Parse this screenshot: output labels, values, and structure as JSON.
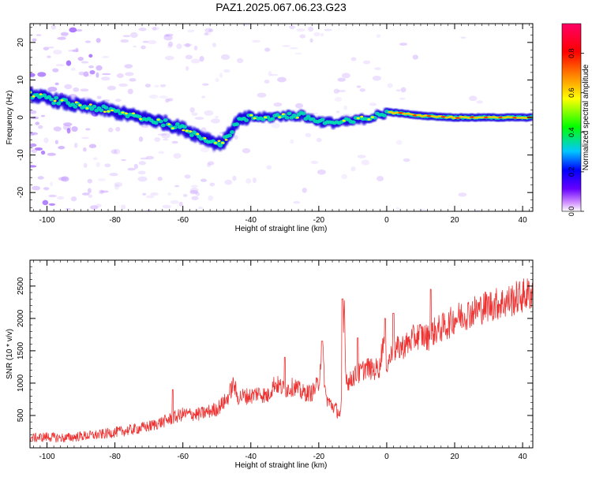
{
  "title": "PAZ1.2025.067.06.23.G23",
  "chart_data": [
    {
      "type": "heatmap",
      "title": "PAZ1.2025.067.06.23.G23",
      "xlabel": "Height of straight line (km)",
      "ylabel": "Frequency (Hz)",
      "xlim": [
        -105,
        43
      ],
      "ylim": [
        -25,
        25
      ],
      "x_ticks": [
        -100,
        -80,
        -60,
        -40,
        -20,
        0,
        20,
        40
      ],
      "y_ticks": [
        -20,
        -10,
        0,
        10,
        20
      ],
      "ridge": {
        "x": [
          -104,
          -100,
          -95,
          -90,
          -85,
          -80,
          -75,
          -70,
          -65,
          -60,
          -55,
          -52,
          -50,
          -48,
          -46,
          -44,
          -40,
          -35,
          -30,
          -25,
          -20,
          -15,
          -10,
          -5,
          -2,
          0,
          5,
          10,
          20,
          30,
          43
        ],
        "y": [
          6,
          5,
          4,
          3,
          2.5,
          1.5,
          0.5,
          -0.5,
          -1.5,
          -3,
          -5,
          -6,
          -7,
          -6.5,
          -4,
          -1,
          0,
          0,
          0.5,
          0.5,
          -1,
          -1.5,
          -1,
          0,
          0.5,
          1.5,
          1,
          0.5,
          0,
          0,
          0
        ]
      },
      "colorbar": {
        "label": "Normalized spectral amplitude",
        "min": 0.0,
        "max": 0.95,
        "ticks": [
          0.0,
          0.2,
          0.4,
          0.6,
          0.8
        ],
        "colors": [
          "#ffffff",
          "#cc88ff",
          "#6600ff",
          "#0000ff",
          "#00c8ff",
          "#00ff00",
          "#ffff00",
          "#ff8800",
          "#ff0000",
          "#ff0066"
        ]
      },
      "colors": {
        "ridge_core": "#ff8800",
        "ridge_mid": "#00e0b0",
        "ridge_outer": "#1a00e0",
        "noise": "#c8a0ff"
      }
    },
    {
      "type": "line",
      "xlabel": "Height of straight line (km)",
      "ylabel": "SNR (10 * v/v)",
      "xlim": [
        -105,
        43
      ],
      "ylim": [
        0,
        2900
      ],
      "x_ticks": [
        -100,
        -80,
        -60,
        -40,
        -20,
        0,
        20,
        40
      ],
      "y_ticks": [
        500,
        1000,
        1500,
        2000,
        2500
      ],
      "series": [
        {
          "color": "#ee3333",
          "x": [
            -105,
            -100,
            -95,
            -90,
            -85,
            -80,
            -75,
            -70,
            -65,
            -60,
            -55,
            -50,
            -47,
            -45,
            -44,
            -42,
            -40,
            -38,
            -35,
            -33,
            -30,
            -27,
            -25,
            -22,
            -20,
            -19,
            -18,
            -17,
            -16,
            -15,
            -13.5,
            -13,
            -12.5,
            -12,
            -11,
            -10,
            -8,
            -6,
            -4,
            -2,
            -1,
            0,
            1,
            2,
            4,
            6,
            8,
            10,
            12,
            14,
            16,
            18,
            20,
            25,
            30,
            35,
            40,
            43
          ],
          "y": [
            150,
            170,
            150,
            180,
            200,
            240,
            280,
            330,
            420,
            520,
            520,
            600,
            750,
            1000,
            780,
            800,
            800,
            850,
            800,
            1000,
            900,
            950,
            850,
            850,
            1000,
            1600,
            800,
            700,
            650,
            600,
            500,
            1200,
            2300,
            1100,
            1000,
            1100,
            1150,
            1250,
            1200,
            1250,
            1700,
            1300,
            1400,
            1500,
            1550,
            1600,
            1700,
            1750,
            1700,
            1800,
            1850,
            1900,
            2000,
            2100,
            2200,
            2250,
            2350,
            2400
          ]
        }
      ]
    }
  ]
}
